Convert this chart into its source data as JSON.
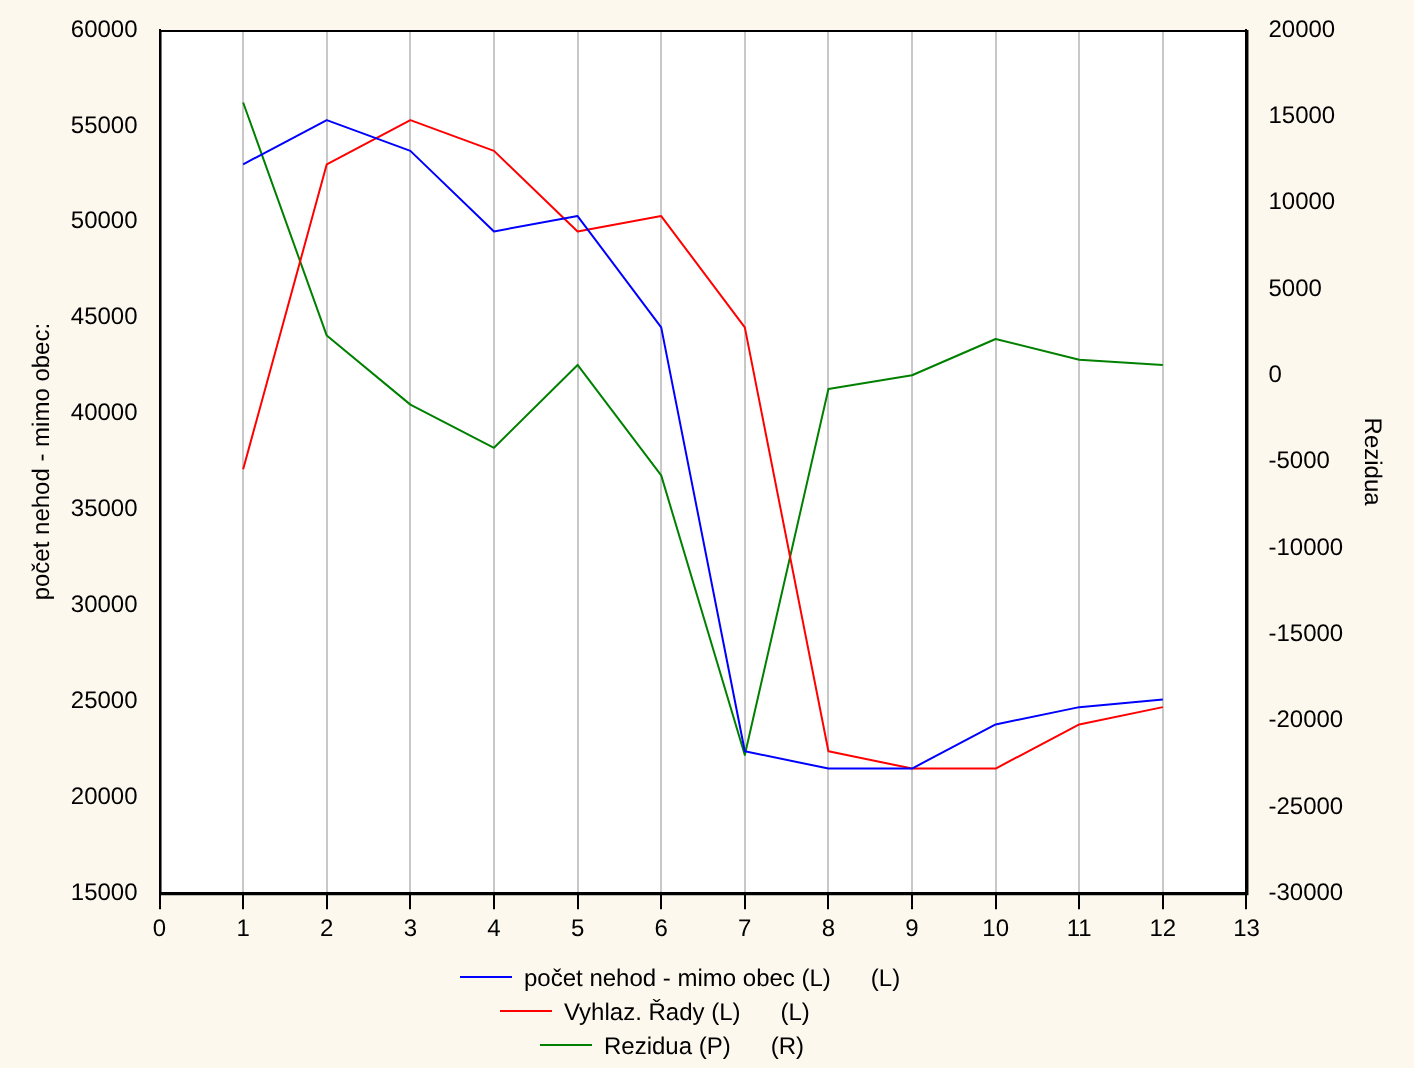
{
  "chart_data": {
    "type": "line",
    "ylabel": "počet nehod - mimo obec:",
    "y2label": "Rezidua",
    "x": [
      1,
      2,
      3,
      4,
      5,
      6,
      7,
      8,
      9,
      10,
      11,
      12
    ],
    "xlim": [
      0,
      13
    ],
    "xticks": [
      0,
      1,
      2,
      3,
      4,
      5,
      6,
      7,
      8,
      9,
      10,
      11,
      12,
      13
    ],
    "ylim": [
      15000,
      60000
    ],
    "yticks": [
      15000,
      20000,
      25000,
      30000,
      35000,
      40000,
      45000,
      50000,
      55000,
      60000
    ],
    "y2lim": [
      -30000,
      20000
    ],
    "y2ticks": [
      -30000,
      -25000,
      -20000,
      -15000,
      -10000,
      -5000,
      0,
      5000,
      10000,
      15000,
      20000
    ],
    "grid": "x",
    "legend": "bottom",
    "marker": "none",
    "line_style": "solid",
    "series": [
      {
        "name": "počet nehod - mimo obec (L)      (L)",
        "color": "#0000ff",
        "values": [
          53000,
          55300,
          53700,
          49500,
          50300,
          44500,
          22400,
          21500,
          21500,
          23800,
          24700,
          25100
        ]
      },
      {
        "name": "Vyhlaz. Řady (L)      (L)",
        "color": "#ff0000",
        "values": [
          37100,
          53000,
          55300,
          53700,
          49500,
          50300,
          44500,
          22400,
          21500,
          21500,
          23800,
          24700
        ]
      },
      {
        "name": "Rezidua (P)      (R)",
        "color": "#008000",
        "axis": "y2",
        "values": [
          15800,
          2300,
          -1700,
          -4200,
          600,
          -5800,
          -22000,
          -800,
          0,
          2100,
          900,
          600
        ]
      }
    ]
  }
}
